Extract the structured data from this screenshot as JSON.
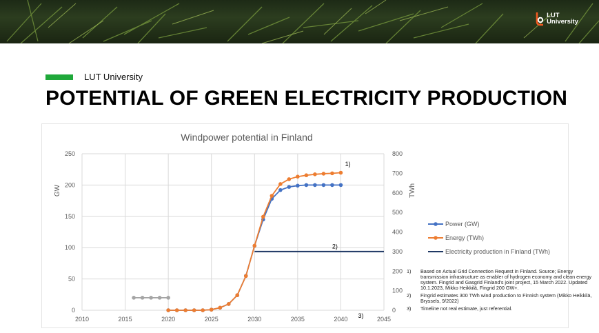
{
  "header": {
    "logo_text": "LUT\nUniversity",
    "brand_label": "LUT University",
    "title": "POTENTIAL OF GREEN ELECTRICITY PRODUCTION"
  },
  "colors": {
    "accent": "#1fa83a",
    "power": "#4472c4",
    "energy": "#ed7d31",
    "finland": "#1f3864",
    "historic": "#a5a5a5",
    "logo_orange": "#f15a22"
  },
  "notes": [
    {
      "num": "1)",
      "text": "Based on Actual Grid Connection Request in Finland. Source; Energy transmission infrastructure as enabler of hydrogen economy and clean energy system. Fingrid and Gasgrid Finland's joint project, 15 March 2022. Updated 10.1.2023, Mikko Heikkilä, Fingrid 200 GW+."
    },
    {
      "num": "2)",
      "text": "Fingrid estimates 300 TWh wind production to Finnish system (Mikko Heikkilä, Bryssels, 9/2022)"
    },
    {
      "num": "3)",
      "text": "Timeline not real estimate, just referential."
    }
  ],
  "chart_data": {
    "type": "line",
    "title": "Windpower potential in Finland",
    "ylabel": "GW",
    "y2label": "TWh",
    "xlim": [
      2010,
      2045
    ],
    "ylim": [
      0,
      250
    ],
    "y2lim": [
      0,
      800
    ],
    "x_ticks": [
      2010,
      2015,
      2020,
      2025,
      2030,
      2035,
      2040,
      2045
    ],
    "y_ticks": [
      0,
      50,
      100,
      150,
      200,
      250
    ],
    "y2_ticks": [
      0,
      100,
      200,
      300,
      400,
      500,
      600,
      700,
      800
    ],
    "grid": true,
    "legend_position": "right",
    "annotations": [
      {
        "text": "1)",
        "x": 2040.5,
        "y": 230,
        "axis": "y"
      },
      {
        "text": "2)",
        "x": 2039,
        "y": 315,
        "axis": "y2"
      },
      {
        "text": "3)",
        "x": 2042,
        "y": -12,
        "axis": "y"
      }
    ],
    "series": [
      {
        "name": "Power (GW)",
        "axis": "y",
        "color": "#4472c4",
        "x": [
          2020,
          2021,
          2022,
          2023,
          2024,
          2025,
          2026,
          2027,
          2028,
          2029,
          2030,
          2031,
          2032,
          2033,
          2034,
          2035,
          2036,
          2037,
          2038,
          2039,
          2040
        ],
        "y": [
          0,
          0,
          0,
          0,
          0,
          1,
          4,
          10,
          24,
          55,
          103,
          145,
          178,
          192,
          197,
          199,
          200,
          200,
          200,
          200,
          200
        ]
      },
      {
        "name": "Energy (TWh)",
        "axis": "y2",
        "color": "#ed7d31",
        "x": [
          2020,
          2021,
          2022,
          2023,
          2024,
          2025,
          2026,
          2027,
          2028,
          2029,
          2030,
          2031,
          2032,
          2033,
          2034,
          2035,
          2036,
          2037,
          2038,
          2039,
          2040
        ],
        "y": [
          0,
          0,
          0,
          0,
          0,
          3,
          13,
          32,
          77,
          175,
          330,
          478,
          585,
          645,
          670,
          683,
          690,
          695,
          698,
          700,
          703
        ]
      },
      {
        "name": "Electricity production in Finland (TWh)",
        "axis": "y2",
        "color": "#1f3864",
        "x": [
          2030,
          2045
        ],
        "y": [
          300,
          300
        ],
        "markers": false
      },
      {
        "name": "",
        "axis": "y",
        "color": "#a5a5a5",
        "x": [
          2016,
          2017,
          2018,
          2019,
          2020
        ],
        "y": [
          20,
          20,
          20,
          20,
          20
        ]
      }
    ]
  }
}
